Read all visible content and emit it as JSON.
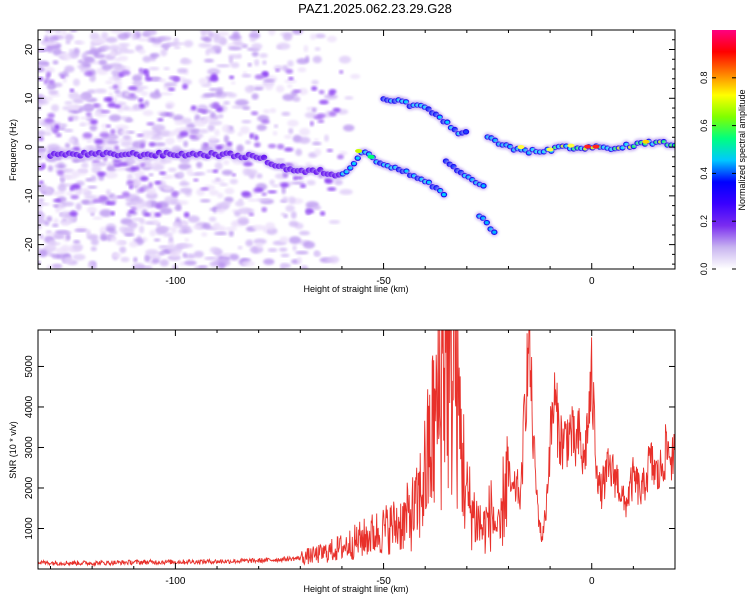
{
  "title": "PAZ1.2025.062.23.29.G28",
  "chart_data": [
    {
      "type": "heatmap",
      "xlabel": "Height of straight line (km)",
      "ylabel": "Frequency (Hz)",
      "xlim": [
        -133,
        20
      ],
      "ylim": [
        -25,
        24
      ],
      "xticks": [
        -100,
        -50,
        0
      ],
      "yticks": [
        -20,
        -10,
        0,
        10,
        20
      ],
      "colorbar": {
        "label": "Normalized spectral amplitude",
        "range": [
          0,
          1
        ],
        "ticks": [
          "0.0",
          "0.2",
          "0.4",
          "0.6",
          "0.8"
        ],
        "colors": [
          "#ffffff",
          "#c8b4f0",
          "#7a2cf0",
          "#3a00ff",
          "#0000ff",
          "#00c8ff",
          "#00ff80",
          "#80ff00",
          "#ffff00",
          "#ff8000",
          "#ff0000",
          "#ff0080"
        ]
      },
      "ridges": [
        {
          "x": [
            -130,
            -115,
            -100,
            -90,
            -80,
            -75,
            -70,
            -65,
            -60,
            -55,
            -50,
            -45,
            -40,
            -35
          ],
          "y": [
            -1.5,
            -1.5,
            -1.5,
            -1.5,
            -2,
            -4,
            -5,
            -5,
            -6,
            -1,
            -3.5,
            -5,
            -7,
            -10
          ]
        },
        {
          "x": [
            -50,
            -45,
            -40,
            -38,
            -35,
            -32,
            -30
          ],
          "y": [
            10,
            9,
            8,
            7,
            5,
            3,
            3.5
          ]
        },
        {
          "x": [
            -35,
            -33,
            -30,
            -28,
            -26
          ],
          "y": [
            -3,
            -4.5,
            -6,
            -7,
            -8
          ]
        },
        {
          "x": [
            -27,
            -25,
            -23
          ],
          "y": [
            -14,
            -16,
            -17.5
          ]
        },
        {
          "x": [
            -25,
            -20,
            -15,
            -10,
            -5,
            0,
            5,
            10,
            15,
            20
          ],
          "y": [
            2,
            0,
            -1,
            -0.5,
            0,
            0,
            -0.5,
            0.5,
            1,
            0.5
          ]
        }
      ]
    },
    {
      "type": "line",
      "xlabel": "Height of straight line (km)",
      "ylabel": "SNR (10 * v/v)",
      "xlim": [
        -133,
        20
      ],
      "ylim": [
        0,
        5900
      ],
      "xticks": [
        -100,
        -50,
        0
      ],
      "yticks": [
        1000,
        2000,
        3000,
        4000,
        5000
      ],
      "series": [
        {
          "color": "#e8302a",
          "x": [
            -133,
            -120,
            -110,
            -100,
            -90,
            -80,
            -70,
            -65,
            -60,
            -55,
            -50,
            -45,
            -42,
            -40,
            -38,
            -36,
            -35,
            -34,
            -33,
            -32,
            -30,
            -28,
            -26,
            -24,
            -22,
            -21,
            -20,
            -19,
            -18,
            -17,
            -16,
            -15,
            -14,
            -13,
            -12,
            -11,
            -10,
            -9,
            -8,
            -7,
            -6,
            -5,
            -4,
            -3,
            -2,
            -1,
            0,
            1,
            2,
            4,
            6,
            8,
            10,
            12,
            14,
            16,
            18,
            20
          ],
          "y": [
            150,
            140,
            160,
            170,
            180,
            200,
            260,
            350,
            500,
            700,
            900,
            1100,
            1400,
            2200,
            3200,
            4200,
            5600,
            4000,
            5200,
            3500,
            1600,
            1200,
            900,
            1300,
            700,
            1900,
            2200,
            1800,
            2000,
            1700,
            4100,
            5550,
            3000,
            1500,
            700,
            1400,
            3100,
            4100,
            3400,
            3000,
            3200,
            3300,
            2900,
            3200,
            2500,
            3400,
            4550,
            2800,
            1800,
            2400,
            2200,
            1500,
            2200,
            1800,
            2600,
            2200,
            2900,
            2600
          ]
        }
      ]
    }
  ]
}
